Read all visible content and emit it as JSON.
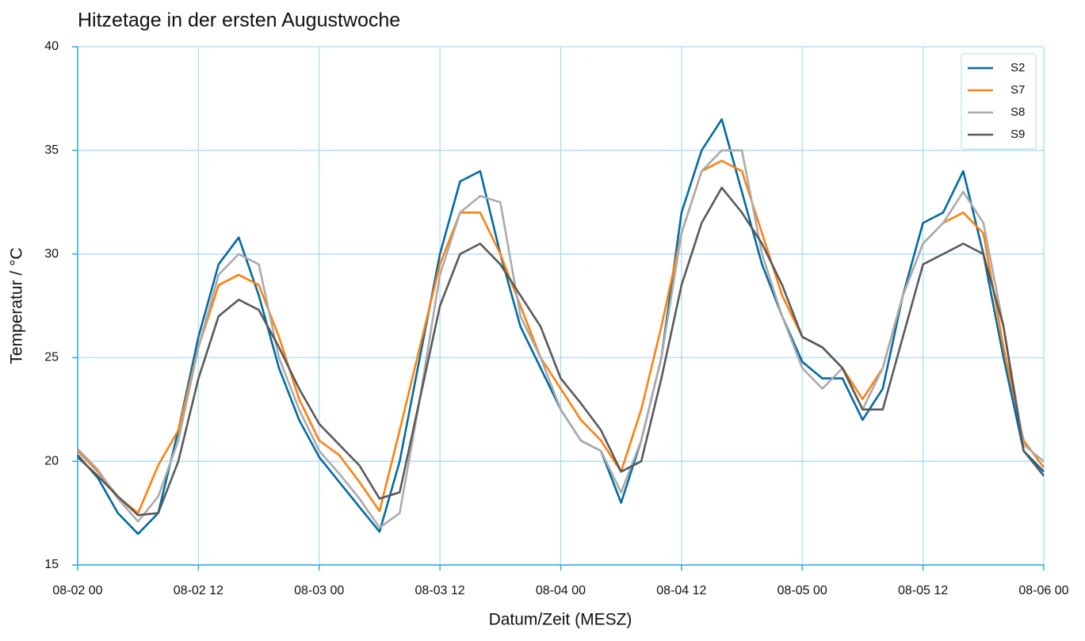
{
  "chart_data": {
    "type": "line",
    "title": "Hitzetage in der ersten Augustwoche",
    "x_label": "Datum/Zeit (MESZ)",
    "y_label": "Temperatur / °C",
    "x": [
      "08-02 00",
      "08-02 02",
      "08-02 04",
      "08-02 06",
      "08-02 08",
      "08-02 10",
      "08-02 12",
      "08-02 14",
      "08-02 16",
      "08-02 18",
      "08-02 20",
      "08-02 22",
      "08-03 00",
      "08-03 02",
      "08-03 04",
      "08-03 06",
      "08-03 08",
      "08-03 10",
      "08-03 12",
      "08-03 14",
      "08-03 16",
      "08-03 18",
      "08-03 20",
      "08-03 22",
      "08-04 00",
      "08-04 02",
      "08-04 04",
      "08-04 06",
      "08-04 08",
      "08-04 10",
      "08-04 12",
      "08-04 14",
      "08-04 16",
      "08-04 18",
      "08-04 20",
      "08-04 22",
      "08-05 00",
      "08-05 02",
      "08-05 04",
      "08-05 06",
      "08-05 08",
      "08-05 10",
      "08-05 12",
      "08-05 14",
      "08-05 16",
      "08-05 18",
      "08-05 20",
      "08-05 22",
      "08-06 00"
    ],
    "series": [
      {
        "name": "S2",
        "color": "#006ba4",
        "values": [
          20.3,
          19.2,
          17.5,
          16.5,
          17.5,
          21.5,
          26,
          29.5,
          30.8,
          28,
          24.5,
          22,
          20.2,
          19,
          17.8,
          16.6,
          20,
          25,
          30,
          33.5,
          34,
          30,
          26.5,
          24.5,
          22.5,
          21,
          20.5,
          18,
          21,
          25,
          32,
          35,
          36.5,
          33,
          29.5,
          27,
          24.8,
          24,
          24,
          22,
          23.5,
          28,
          31.5,
          32,
          34,
          30,
          25,
          20.5,
          19.5
        ]
      },
      {
        "name": "S7",
        "color": "#ff800e",
        "values": [
          20.5,
          19.5,
          18.3,
          17.5,
          19.8,
          21.5,
          25.5,
          28.5,
          29,
          28.5,
          26,
          23,
          21,
          20.3,
          19,
          17.6,
          21.5,
          25.5,
          29.5,
          32,
          32,
          30,
          27.5,
          25,
          23.5,
          22,
          21,
          19.5,
          22.5,
          26.5,
          31,
          34,
          34.5,
          34,
          31,
          28,
          26,
          25.5,
          24.5,
          23,
          24.5,
          28,
          30.5,
          31.5,
          32,
          31,
          25.5,
          21,
          19.7
        ]
      },
      {
        "name": "S8",
        "color": "#ababab",
        "values": [
          20.6,
          19.6,
          18.2,
          17.1,
          18.3,
          21,
          25.5,
          29,
          30,
          29.5,
          25,
          22.5,
          20.5,
          19.4,
          18.2,
          16.8,
          17.5,
          23,
          29,
          32,
          32.8,
          32.5,
          27,
          25,
          22.5,
          21,
          20.5,
          18.5,
          21,
          25,
          31,
          34,
          35,
          35,
          30,
          27,
          24.5,
          23.5,
          24.5,
          22.5,
          24.5,
          28,
          30.5,
          31.5,
          33,
          31.5,
          26.5,
          20.8,
          20
        ]
      },
      {
        "name": "S9",
        "color": "#595959",
        "values": [
          20.2,
          19.3,
          18.3,
          17.4,
          17.5,
          20,
          24,
          27,
          27.8,
          27.3,
          25.5,
          23.5,
          21.8,
          20.8,
          19.8,
          18.2,
          18.5,
          23,
          27.5,
          30,
          30.5,
          29.5,
          28,
          26.5,
          24,
          22.8,
          21.5,
          19.5,
          20,
          24,
          28.5,
          31.5,
          33.2,
          32,
          30.5,
          28.5,
          26,
          25.5,
          24.5,
          22.5,
          22.5,
          26,
          29.5,
          30,
          30.5,
          30,
          26.5,
          20.5,
          19.3
        ]
      }
    ],
    "xlim": [
      "08-02 00",
      "08-06 00"
    ],
    "xticks": [
      "08-02 00",
      "08-02 12",
      "08-03 00",
      "08-03 12",
      "08-04 00",
      "08-04 12",
      "08-05 00",
      "08-05 12",
      "08-06 00"
    ],
    "ylim": [
      15,
      40
    ],
    "yticks": [
      15,
      20,
      25,
      30,
      35,
      40
    ],
    "grid": true,
    "legend": "upper right"
  }
}
